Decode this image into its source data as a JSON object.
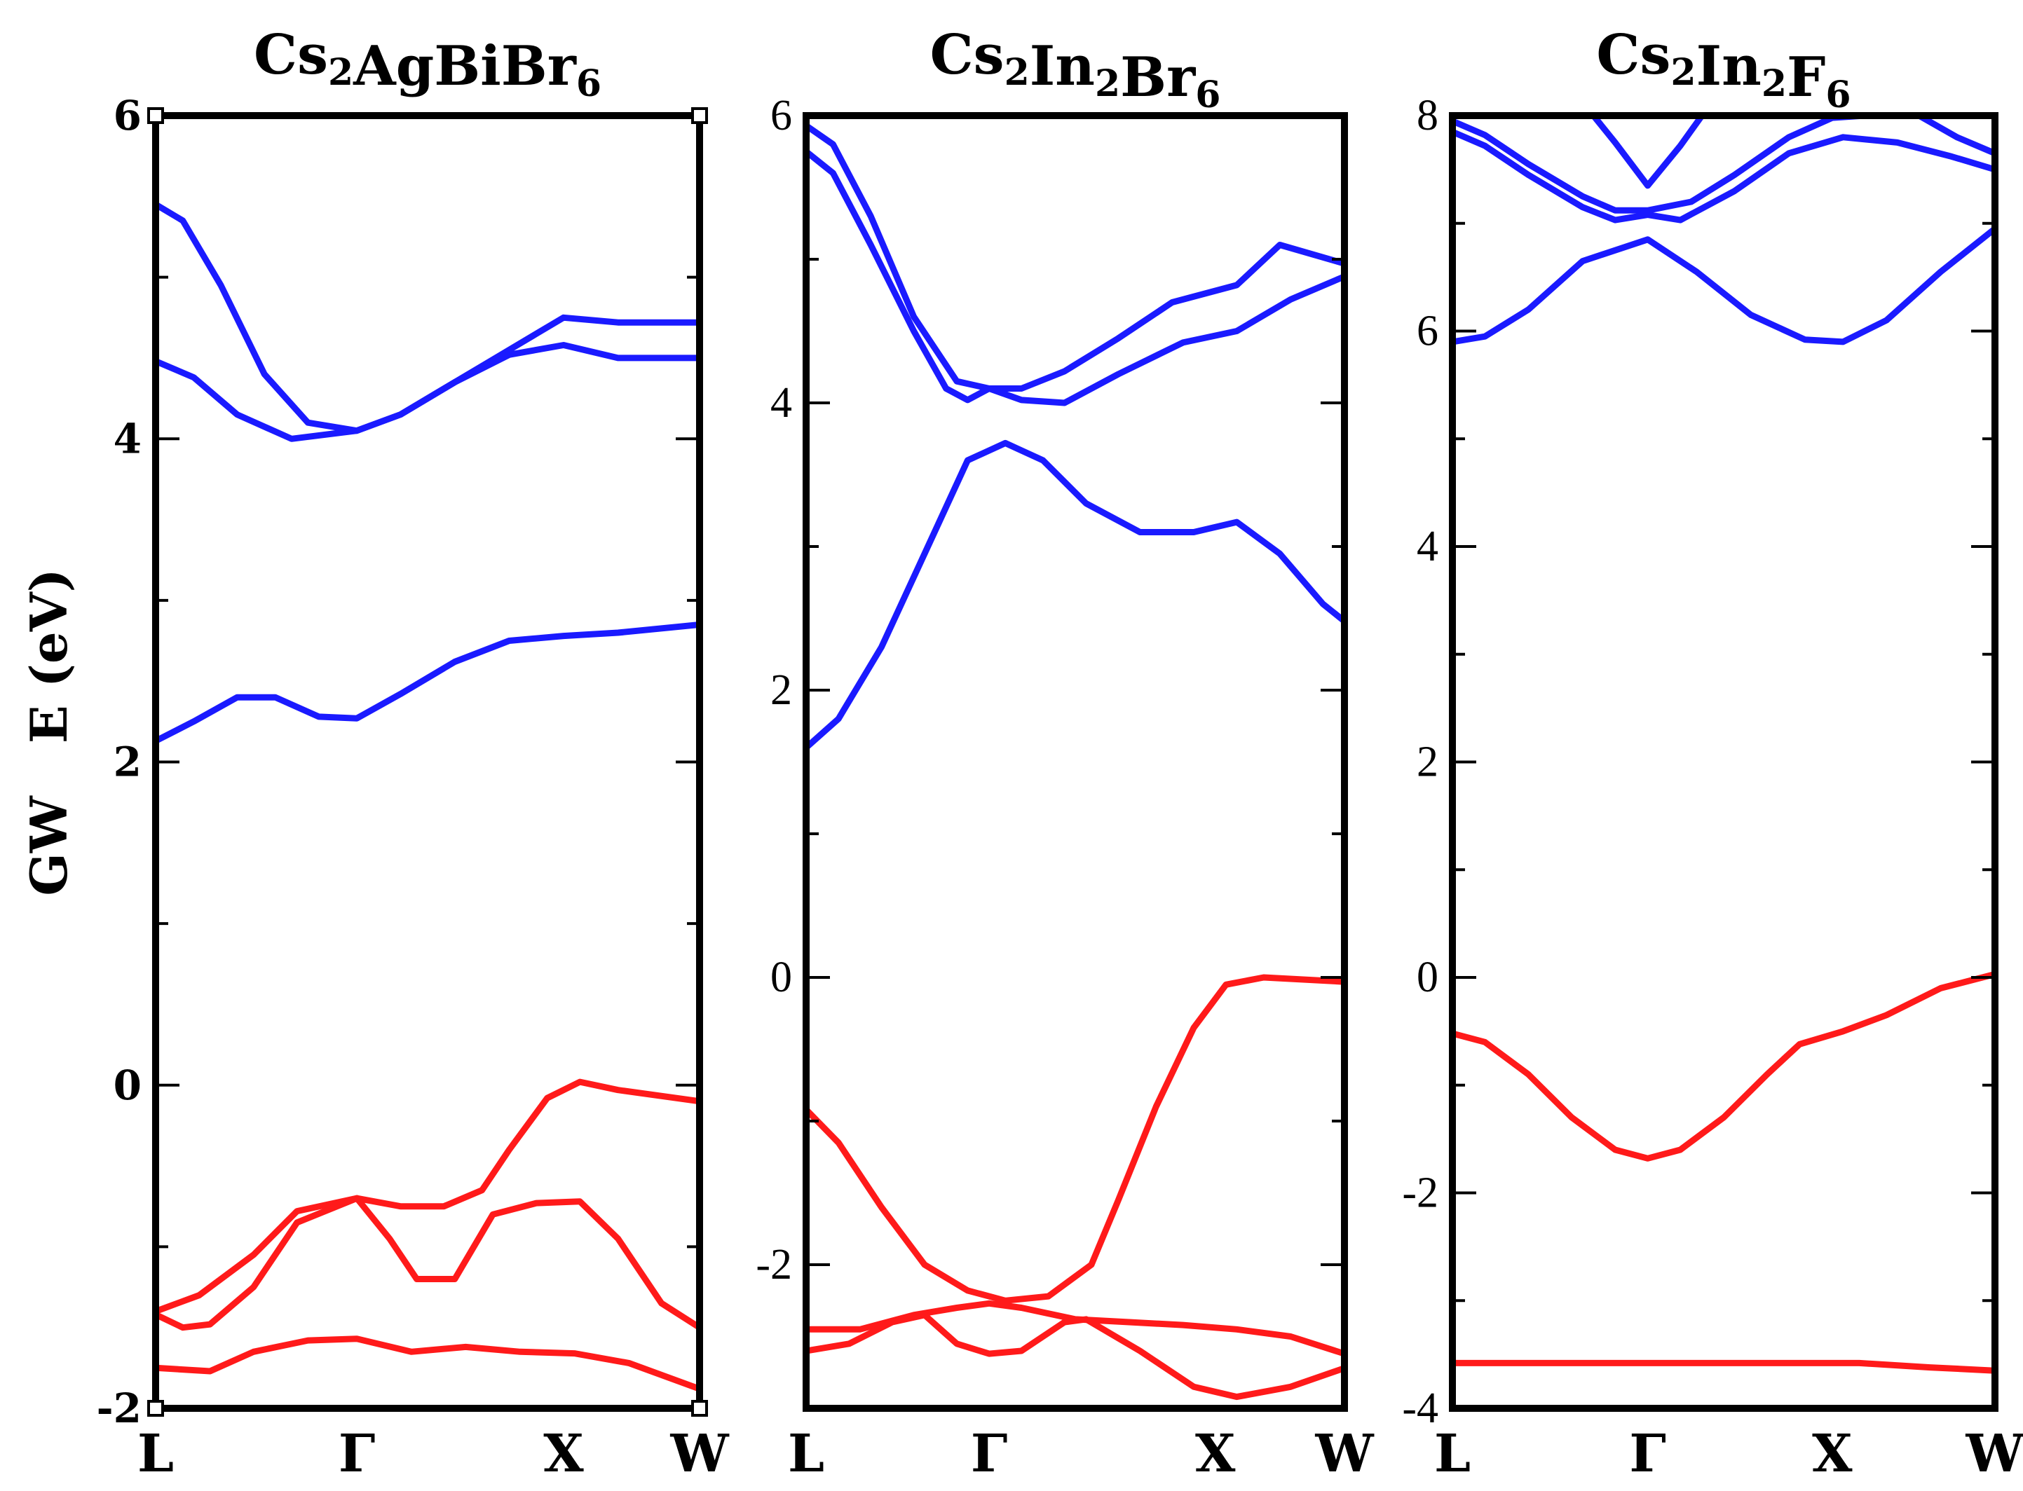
{
  "ylabel": "GW   E (eV)",
  "colors": {
    "conduction": "#1a1aff",
    "valence": "#ff1a1a",
    "axis": "#000000"
  },
  "chart_data": [
    {
      "type": "line",
      "title": {
        "base": "Cs",
        "parts": [
          [
            "Cs",
            "2"
          ],
          [
            "AgBiBr",
            "6"
          ]
        ]
      },
      "title_text": "Cs2AgBiBr6",
      "xlabel": "",
      "ylabel": "GW   E (eV)",
      "ylim": [
        -2,
        6
      ],
      "yticks": [
        -2,
        0,
        2,
        4,
        6
      ],
      "xlim": [
        0,
        1
      ],
      "kpoints": [
        {
          "label": "L",
          "x": 0
        },
        {
          "label": "Γ",
          "x": 0.37
        },
        {
          "label": "X",
          "x": 0.75
        },
        {
          "label": "W",
          "x": 1.0
        }
      ],
      "series": [
        {
          "name": "conduction-1",
          "band": "conduction",
          "points": [
            [
              0,
              5.45
            ],
            [
              0.05,
              5.35
            ],
            [
              0.12,
              4.95
            ],
            [
              0.2,
              4.4
            ],
            [
              0.28,
              4.1
            ],
            [
              0.37,
              4.05
            ],
            [
              0.45,
              4.15
            ],
            [
              0.55,
              4.35
            ],
            [
              0.65,
              4.55
            ],
            [
              0.7,
              4.65
            ],
            [
              0.75,
              4.75
            ],
            [
              0.85,
              4.72
            ],
            [
              1.0,
              4.72
            ]
          ]
        },
        {
          "name": "conduction-2",
          "band": "conduction",
          "points": [
            [
              0,
              4.48
            ],
            [
              0.07,
              4.38
            ],
            [
              0.15,
              4.15
            ],
            [
              0.25,
              4.0
            ],
            [
              0.37,
              4.05
            ],
            [
              0.45,
              4.15
            ],
            [
              0.55,
              4.35
            ],
            [
              0.65,
              4.52
            ],
            [
              0.75,
              4.58
            ],
            [
              0.85,
              4.5
            ],
            [
              1.0,
              4.5
            ]
          ]
        },
        {
          "name": "conduction-3",
          "band": "conduction",
          "points": [
            [
              0,
              2.13
            ],
            [
              0.07,
              2.25
            ],
            [
              0.15,
              2.4
            ],
            [
              0.22,
              2.4
            ],
            [
              0.3,
              2.28
            ],
            [
              0.37,
              2.27
            ],
            [
              0.45,
              2.42
            ],
            [
              0.55,
              2.62
            ],
            [
              0.65,
              2.75
            ],
            [
              0.75,
              2.78
            ],
            [
              0.85,
              2.8
            ],
            [
              1.0,
              2.85
            ]
          ]
        },
        {
          "name": "valence-1",
          "band": "valence",
          "points": [
            [
              0,
              -1.4
            ],
            [
              0.08,
              -1.3
            ],
            [
              0.18,
              -1.05
            ],
            [
              0.26,
              -0.78
            ],
            [
              0.37,
              -0.7
            ],
            [
              0.45,
              -0.75
            ],
            [
              0.53,
              -0.75
            ],
            [
              0.6,
              -0.65
            ],
            [
              0.65,
              -0.4
            ],
            [
              0.72,
              -0.08
            ],
            [
              0.78,
              0.02
            ],
            [
              0.85,
              -0.03
            ],
            [
              1.0,
              -0.1
            ]
          ]
        },
        {
          "name": "valence-2",
          "band": "valence",
          "points": [
            [
              0,
              -1.42
            ],
            [
              0.05,
              -1.5
            ],
            [
              0.1,
              -1.48
            ],
            [
              0.18,
              -1.25
            ],
            [
              0.26,
              -0.85
            ],
            [
              0.37,
              -0.7
            ],
            [
              0.43,
              -0.95
            ],
            [
              0.48,
              -1.2
            ],
            [
              0.55,
              -1.2
            ],
            [
              0.62,
              -0.8
            ],
            [
              0.7,
              -0.73
            ],
            [
              0.78,
              -0.72
            ],
            [
              0.85,
              -0.95
            ],
            [
              0.93,
              -1.35
            ],
            [
              1.0,
              -1.5
            ]
          ]
        },
        {
          "name": "valence-3",
          "band": "valence",
          "points": [
            [
              0,
              -1.75
            ],
            [
              0.1,
              -1.77
            ],
            [
              0.18,
              -1.65
            ],
            [
              0.28,
              -1.58
            ],
            [
              0.37,
              -1.57
            ],
            [
              0.47,
              -1.65
            ],
            [
              0.57,
              -1.62
            ],
            [
              0.67,
              -1.65
            ],
            [
              0.77,
              -1.66
            ],
            [
              0.87,
              -1.72
            ],
            [
              1.0,
              -1.88
            ]
          ]
        }
      ]
    },
    {
      "type": "line",
      "title": {
        "base": "Cs",
        "parts": [
          [
            "Cs",
            "2"
          ],
          [
            "In",
            "2"
          ],
          [
            "Br",
            "6"
          ]
        ]
      },
      "title_text": "Cs2In2Br6",
      "xlabel": "",
      "ylabel": "",
      "ylim": [
        -3,
        6
      ],
      "yticks": [
        -2,
        0,
        2,
        4,
        6
      ],
      "xlim": [
        0,
        1
      ],
      "kpoints": [
        {
          "label": "L",
          "x": 0
        },
        {
          "label": "Γ",
          "x": 0.34
        },
        {
          "label": "X",
          "x": 0.76
        },
        {
          "label": "W",
          "x": 1.0
        }
      ],
      "series": [
        {
          "name": "conduction-1",
          "band": "conduction",
          "points": [
            [
              0,
              5.93
            ],
            [
              0.05,
              5.8
            ],
            [
              0.12,
              5.3
            ],
            [
              0.2,
              4.6
            ],
            [
              0.28,
              4.15
            ],
            [
              0.34,
              4.1
            ],
            [
              0.4,
              4.1
            ],
            [
              0.48,
              4.22
            ],
            [
              0.58,
              4.45
            ],
            [
              0.68,
              4.7
            ],
            [
              0.8,
              4.82
            ],
            [
              0.88,
              5.1
            ],
            [
              1.0,
              4.97
            ]
          ]
        },
        {
          "name": "conduction-2",
          "band": "conduction",
          "points": [
            [
              0,
              5.75
            ],
            [
              0.05,
              5.6
            ],
            [
              0.12,
              5.1
            ],
            [
              0.2,
              4.5
            ],
            [
              0.26,
              4.1
            ],
            [
              0.3,
              4.02
            ],
            [
              0.34,
              4.1
            ],
            [
              0.4,
              4.02
            ],
            [
              0.48,
              4.0
            ],
            [
              0.58,
              4.2
            ],
            [
              0.7,
              4.42
            ],
            [
              0.8,
              4.5
            ],
            [
              0.9,
              4.72
            ],
            [
              1.0,
              4.88
            ]
          ]
        },
        {
          "name": "conduction-3",
          "band": "conduction",
          "points": [
            [
              0,
              1.6
            ],
            [
              0.06,
              1.8
            ],
            [
              0.14,
              2.3
            ],
            [
              0.22,
              2.95
            ],
            [
              0.3,
              3.6
            ],
            [
              0.37,
              3.72
            ],
            [
              0.44,
              3.6
            ],
            [
              0.52,
              3.3
            ],
            [
              0.62,
              3.1
            ],
            [
              0.72,
              3.1
            ],
            [
              0.8,
              3.17
            ],
            [
              0.88,
              2.95
            ],
            [
              0.96,
              2.6
            ],
            [
              1.0,
              2.48
            ]
          ]
        },
        {
          "name": "valence-1",
          "band": "valence",
          "points": [
            [
              0,
              -0.92
            ],
            [
              0.06,
              -1.15
            ],
            [
              0.14,
              -1.6
            ],
            [
              0.22,
              -2.0
            ],
            [
              0.3,
              -2.18
            ],
            [
              0.37,
              -2.25
            ],
            [
              0.45,
              -2.22
            ],
            [
              0.53,
              -2.0
            ],
            [
              0.58,
              -1.55
            ],
            [
              0.65,
              -0.9
            ],
            [
              0.72,
              -0.35
            ],
            [
              0.78,
              -0.05
            ],
            [
              0.85,
              0.0
            ],
            [
              1.0,
              -0.03
            ]
          ]
        },
        {
          "name": "valence-2",
          "band": "valence",
          "points": [
            [
              0,
              -2.45
            ],
            [
              0.1,
              -2.45
            ],
            [
              0.2,
              -2.35
            ],
            [
              0.28,
              -2.3
            ],
            [
              0.34,
              -2.27
            ],
            [
              0.4,
              -2.3
            ],
            [
              0.5,
              -2.38
            ],
            [
              0.6,
              -2.4
            ],
            [
              0.7,
              -2.42
            ],
            [
              0.8,
              -2.45
            ],
            [
              0.9,
              -2.5
            ],
            [
              1.0,
              -2.62
            ]
          ]
        },
        {
          "name": "valence-3",
          "band": "valence",
          "points": [
            [
              0,
              -2.6
            ],
            [
              0.08,
              -2.55
            ],
            [
              0.16,
              -2.4
            ],
            [
              0.22,
              -2.35
            ],
            [
              0.28,
              -2.55
            ],
            [
              0.34,
              -2.62
            ],
            [
              0.4,
              -2.6
            ],
            [
              0.48,
              -2.4
            ],
            [
              0.52,
              -2.38
            ],
            [
              0.62,
              -2.6
            ],
            [
              0.72,
              -2.85
            ],
            [
              0.8,
              -2.92
            ],
            [
              0.9,
              -2.85
            ],
            [
              1.0,
              -2.72
            ]
          ]
        }
      ]
    },
    {
      "type": "line",
      "title": {
        "base": "Cs",
        "parts": [
          [
            "Cs",
            "2"
          ],
          [
            "In",
            "2"
          ],
          [
            "F",
            "6"
          ]
        ]
      },
      "title_text": "Cs2In2F6",
      "xlabel": "",
      "ylabel": "",
      "ylim": [
        -4,
        8
      ],
      "yticks": [
        -4,
        -2,
        0,
        2,
        4,
        6,
        8
      ],
      "xlim": [
        0,
        1
      ],
      "kpoints": [
        {
          "label": "L",
          "x": 0
        },
        {
          "label": "Γ",
          "x": 0.36
        },
        {
          "label": "X",
          "x": 0.7
        },
        {
          "label": "W",
          "x": 1.0
        }
      ],
      "series": [
        {
          "name": "conduction-1",
          "band": "conduction",
          "points": [
            [
              0,
              5.9
            ],
            [
              0.06,
              5.95
            ],
            [
              0.14,
              6.2
            ],
            [
              0.24,
              6.65
            ],
            [
              0.36,
              6.85
            ],
            [
              0.45,
              6.55
            ],
            [
              0.55,
              6.15
            ],
            [
              0.65,
              5.92
            ],
            [
              0.72,
              5.9
            ],
            [
              0.8,
              6.1
            ],
            [
              0.9,
              6.55
            ],
            [
              1.0,
              6.95
            ]
          ]
        },
        {
          "name": "conduction-2",
          "band": "conduction",
          "points": [
            [
              0,
              7.85
            ],
            [
              0.06,
              7.72
            ],
            [
              0.14,
              7.45
            ],
            [
              0.24,
              7.15
            ],
            [
              0.3,
              7.03
            ],
            [
              0.36,
              7.08
            ],
            [
              0.42,
              7.03
            ],
            [
              0.52,
              7.3
            ],
            [
              0.62,
              7.65
            ],
            [
              0.72,
              7.8
            ],
            [
              0.82,
              7.75
            ],
            [
              0.92,
              7.62
            ],
            [
              1.0,
              7.5
            ]
          ]
        },
        {
          "name": "conduction-3",
          "band": "conduction",
          "points": [
            [
              0,
              7.95
            ],
            [
              0.06,
              7.82
            ],
            [
              0.14,
              7.55
            ],
            [
              0.24,
              7.25
            ],
            [
              0.3,
              7.12
            ],
            [
              0.36,
              7.12
            ],
            [
              0.44,
              7.2
            ],
            [
              0.52,
              7.45
            ],
            [
              0.62,
              7.8
            ],
            [
              0.7,
              7.98
            ],
            [
              0.76,
              8.0
            ]
          ]
        },
        {
          "name": "conduction-4",
          "band": "conduction",
          "points": [
            [
              0.26,
              8.0
            ],
            [
              0.3,
              7.75
            ],
            [
              0.36,
              7.35
            ],
            [
              0.42,
              7.72
            ],
            [
              0.46,
              8.0
            ]
          ]
        },
        {
          "name": "conduction-5",
          "band": "conduction",
          "points": [
            [
              0.86,
              8.0
            ],
            [
              0.93,
              7.8
            ],
            [
              1.0,
              7.65
            ]
          ]
        },
        {
          "name": "valence-1",
          "band": "valence",
          "points": [
            [
              0,
              -0.52
            ],
            [
              0.06,
              -0.6
            ],
            [
              0.14,
              -0.9
            ],
            [
              0.22,
              -1.3
            ],
            [
              0.3,
              -1.6
            ],
            [
              0.36,
              -1.68
            ],
            [
              0.42,
              -1.6
            ],
            [
              0.5,
              -1.3
            ],
            [
              0.58,
              -0.9
            ],
            [
              0.64,
              -0.62
            ],
            [
              0.72,
              -0.5
            ],
            [
              0.8,
              -0.35
            ],
            [
              0.9,
              -0.1
            ],
            [
              1.0,
              0.03
            ]
          ]
        },
        {
          "name": "valence-2",
          "band": "valence",
          "points": [
            [
              0,
              -3.58
            ],
            [
              0.2,
              -3.58
            ],
            [
              0.4,
              -3.58
            ],
            [
              0.6,
              -3.58
            ],
            [
              0.75,
              -3.58
            ],
            [
              0.88,
              -3.62
            ],
            [
              1.0,
              -3.65
            ]
          ]
        }
      ]
    }
  ]
}
